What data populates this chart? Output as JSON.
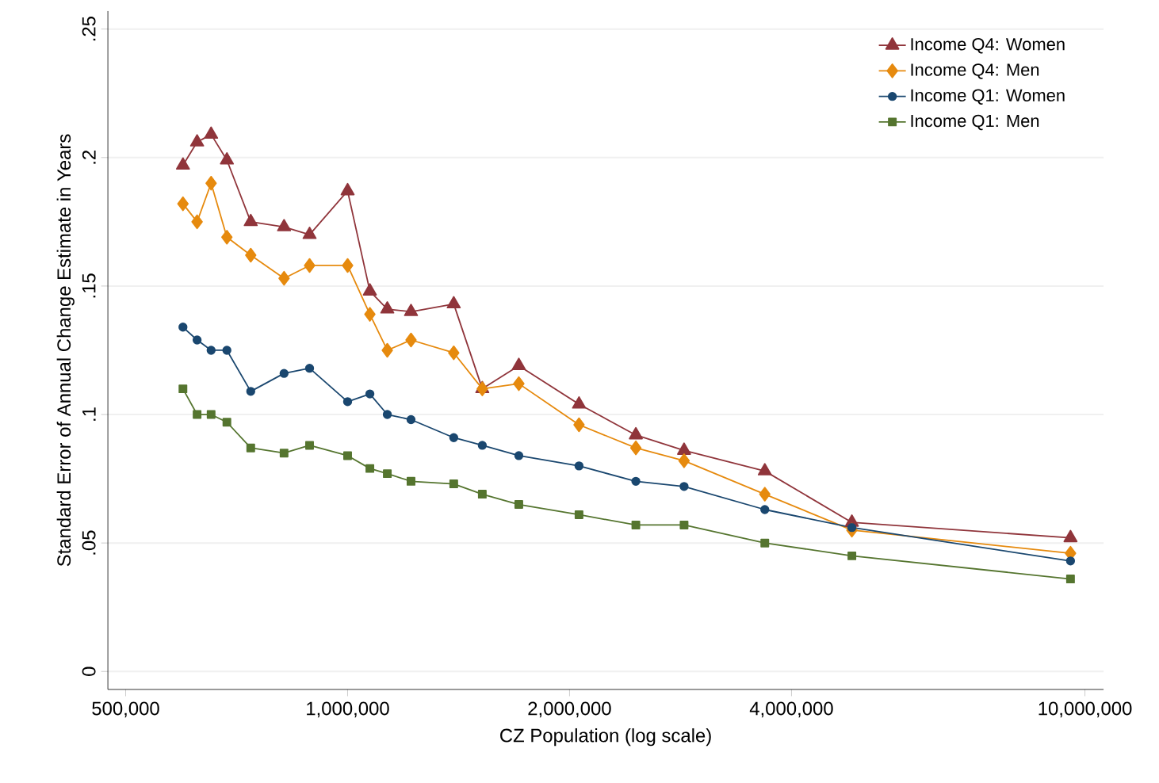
{
  "chart_data": {
    "type": "line",
    "xlabel": "CZ Population (log scale)",
    "ylabel": "Standard Error of Annual Change Estimate in Years",
    "log": "x",
    "grid": "y",
    "legend": "top right",
    "line_style": "solid",
    "xlim": [
      473000,
      10600000
    ],
    "ylim": [
      -0.007,
      0.257
    ],
    "xticks": [
      {
        "value": 500000,
        "label": "500,000"
      },
      {
        "value": 1000000,
        "label": "1,000,000"
      },
      {
        "value": 2000000,
        "label": "2,000,000"
      },
      {
        "value": 4000000,
        "label": "4,000,000"
      },
      {
        "value": 10000000,
        "label": "10,000,000"
      }
    ],
    "yticks": [
      {
        "value": 0,
        "label": "0"
      },
      {
        "value": 0.05,
        "label": ".05"
      },
      {
        "value": 0.1,
        "label": ".1"
      },
      {
        "value": 0.15,
        "label": ".15"
      },
      {
        "value": 0.2,
        "label": ".2"
      },
      {
        "value": 0.25,
        "label": ".25"
      }
    ],
    "x": [
      598000,
      625000,
      653000,
      686000,
      739000,
      820000,
      888000,
      1000000,
      1072000,
      1132000,
      1219000,
      1393000,
      1523000,
      1707000,
      2060000,
      2460000,
      2860000,
      3680000,
      4830000,
      9560000
    ],
    "series": [
      {
        "name": "Income Q4: Women",
        "color": "#90353b",
        "marker": "triangle",
        "values": [
          0.197,
          0.206,
          0.209,
          0.199,
          0.175,
          0.173,
          0.17,
          0.187,
          0.148,
          0.141,
          0.14,
          0.143,
          0.11,
          0.119,
          0.104,
          0.092,
          0.086,
          0.078,
          0.058,
          0.052
        ]
      },
      {
        "name": "Income Q4: Men",
        "color": "#e68a0e",
        "marker": "diamond",
        "values": [
          0.182,
          0.175,
          0.19,
          0.169,
          0.162,
          0.153,
          0.158,
          0.158,
          0.139,
          0.125,
          0.129,
          0.124,
          0.11,
          0.112,
          0.096,
          0.087,
          0.082,
          0.069,
          0.055,
          0.046
        ]
      },
      {
        "name": "Income Q1: Women",
        "color": "#1a476f",
        "marker": "circle",
        "values": [
          0.134,
          0.129,
          0.125,
          0.125,
          0.109,
          0.116,
          0.118,
          0.105,
          0.108,
          0.1,
          0.098,
          0.091,
          0.088,
          0.084,
          0.08,
          0.074,
          0.072,
          0.063,
          0.056,
          0.043
        ]
      },
      {
        "name": "Income Q1: Men",
        "color": "#55752f",
        "marker": "square",
        "values": [
          0.11,
          0.1,
          0.1,
          0.097,
          0.087,
          0.085,
          0.088,
          0.084,
          0.079,
          0.077,
          0.074,
          0.073,
          0.069,
          0.065,
          0.061,
          0.057,
          0.057,
          0.05,
          0.045,
          0.036
        ]
      }
    ]
  }
}
